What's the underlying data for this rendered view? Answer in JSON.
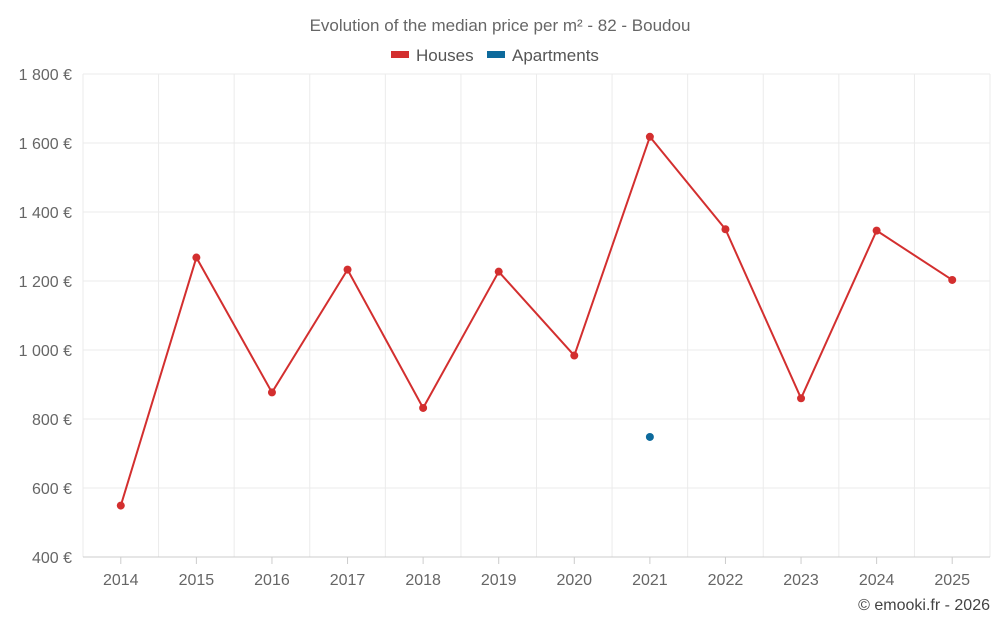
{
  "chart_data": {
    "type": "line",
    "title": "Evolution of the median price per m² - 82 - Boudou",
    "categories": [
      "2014",
      "2015",
      "2016",
      "2017",
      "2018",
      "2019",
      "2020",
      "2021",
      "2022",
      "2023",
      "2024",
      "2025"
    ],
    "series": [
      {
        "name": "Houses",
        "color": "#d32f2f",
        "values": [
          549,
          1268,
          877,
          1233,
          832,
          1227,
          984,
          1618,
          1350,
          860,
          1346,
          1203
        ]
      },
      {
        "name": "Apartments",
        "color": "#0d6a9c",
        "values": [
          null,
          null,
          null,
          null,
          null,
          null,
          null,
          748,
          null,
          null,
          null,
          null
        ]
      }
    ],
    "ylim": [
      400,
      1800
    ],
    "yticks": [
      400,
      600,
      800,
      1000,
      1200,
      1400,
      1600,
      1800
    ],
    "ytick_labels": [
      "400 €",
      "600 €",
      "800 €",
      "1 000 €",
      "1 200 €",
      "1 400 €",
      "1 600 €",
      "1 800 €"
    ],
    "grid": true,
    "legend_position": "top-center",
    "credit": "© emooki.fr - 2026"
  }
}
